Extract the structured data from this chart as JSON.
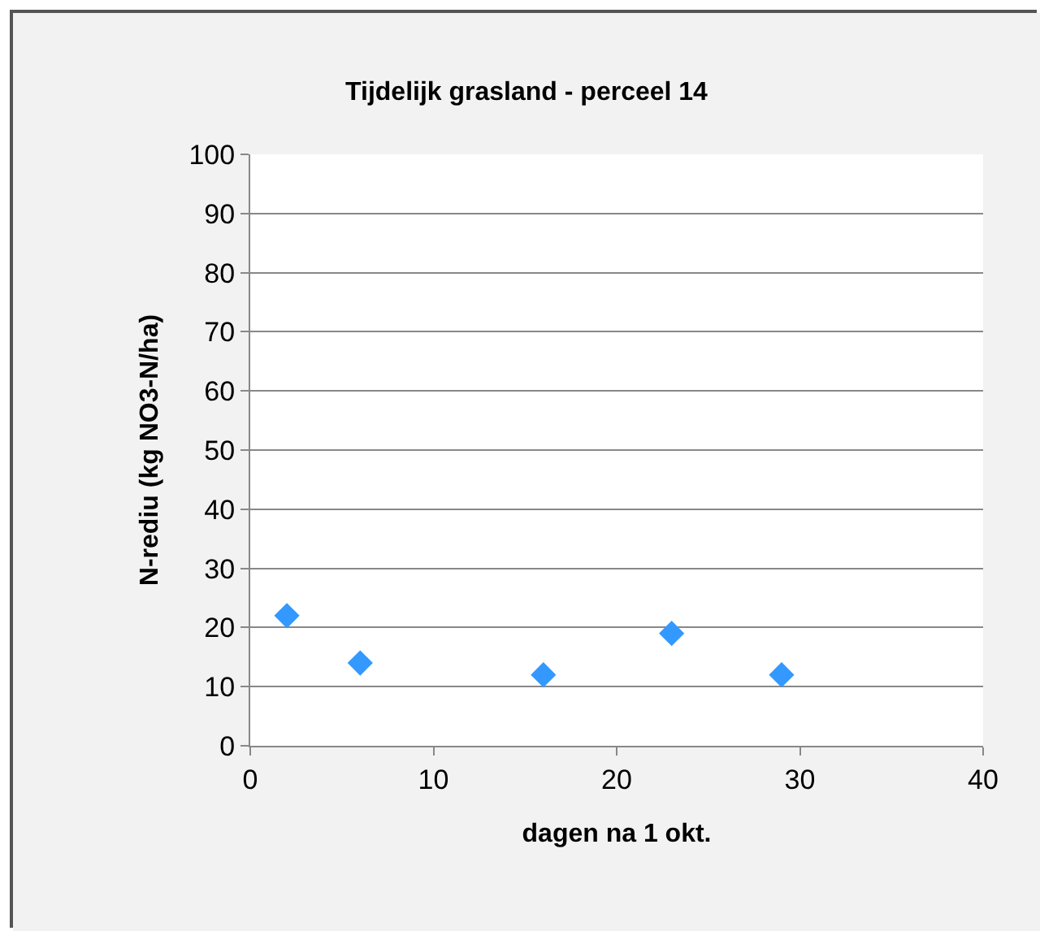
{
  "chart_data": {
    "type": "scatter",
    "title": "Tijdelijk grasland - perceel 14",
    "xlabel": "dagen na 1 okt.",
    "ylabel": "N-rediu (kg NO3-N/ha)",
    "x": [
      2,
      6,
      16,
      23,
      29
    ],
    "series": [
      {
        "color": "#3399ff",
        "values": [
          22,
          14,
          12,
          19,
          12
        ]
      }
    ],
    "xlim": [
      0,
      40
    ],
    "xticks": [
      0,
      10,
      20,
      30,
      40
    ],
    "ylim": [
      0,
      100
    ],
    "yticks": [
      0,
      10,
      20,
      30,
      40,
      50,
      60,
      70,
      80,
      90,
      100
    ],
    "grid": "y",
    "legend": false,
    "marker": "diamond"
  }
}
